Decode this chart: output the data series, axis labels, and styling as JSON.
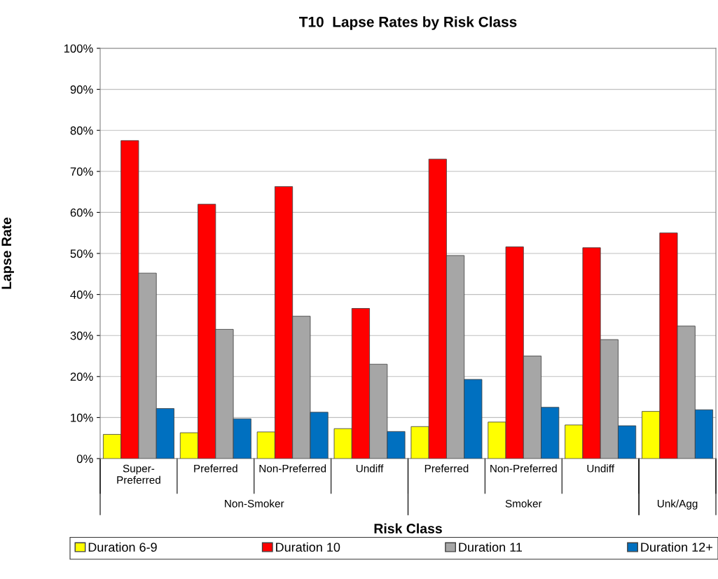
{
  "chart_data": {
    "type": "bar",
    "title": "T10  Lapse Rates by Risk Class",
    "xlabel": "Risk Class",
    "ylabel": "Lapse Rate",
    "categories": [
      "Super-\nPreferred",
      "Preferred",
      "Non-Preferred",
      "Undiff",
      "Preferred",
      "Non-Preferred",
      "Undiff",
      null
    ],
    "series": [
      {
        "name": "Duration 6-9",
        "color": "#ffff00",
        "values": [
          5.9,
          6.3,
          6.5,
          7.3,
          7.8,
          8.9,
          8.2,
          11.5
        ]
      },
      {
        "name": "Duration 10",
        "color": "#ff0000",
        "values": [
          77.5,
          62.0,
          66.3,
          36.6,
          73.0,
          51.6,
          51.4,
          55.0
        ]
      },
      {
        "name": "Duration 11",
        "color": "#a6a6a6",
        "values": [
          45.2,
          31.5,
          34.7,
          23.0,
          49.5,
          25.0,
          29.0,
          32.3
        ]
      },
      {
        "name": "Duration 12+",
        "color": "#0070c0",
        "values": [
          12.2,
          9.7,
          11.3,
          6.6,
          19.3,
          12.5,
          8.0,
          11.9
        ]
      }
    ],
    "annotations": [
      "Non-Smoker",
      "Smoker",
      "Unk/Agg"
    ],
    "ylim": [
      0,
      100
    ],
    "yticks": [
      {
        "value": 0,
        "label": "0%"
      },
      {
        "value": 10,
        "label": "10%"
      },
      {
        "value": 20,
        "label": "20%"
      },
      {
        "value": 30,
        "label": "30%"
      },
      {
        "value": 40,
        "label": "40%"
      },
      {
        "value": 50,
        "label": "50%"
      },
      {
        "value": 60,
        "label": "60%"
      },
      {
        "value": 70,
        "label": "70%"
      },
      {
        "value": 80,
        "label": "80%"
      },
      {
        "value": 90,
        "label": "90%"
      },
      {
        "value": 100,
        "label": "100%"
      }
    ],
    "grid": "y",
    "legend": "bottom"
  }
}
